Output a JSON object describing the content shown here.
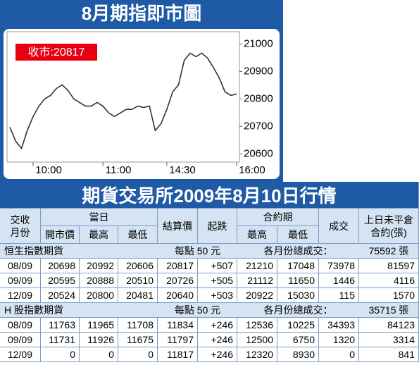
{
  "chart_data": {
    "type": "line",
    "title": "8月期指即市圖",
    "annotation": "收市:20817",
    "color": "#333333",
    "categories": [
      null,
      null,
      null,
      null,
      "10:00",
      null,
      null,
      null,
      null,
      null,
      null,
      null,
      null,
      null,
      null,
      null,
      "11:00",
      null,
      null,
      null,
      null,
      null,
      null,
      null,
      null,
      null,
      null,
      "14:30",
      null,
      null,
      null,
      null,
      null,
      null,
      null,
      null,
      null,
      null,
      null,
      "16:00"
    ],
    "values": [
      20697,
      20646,
      20620,
      20685,
      20736,
      20774,
      20800,
      20813,
      20838,
      20851,
      20831,
      20800,
      20787,
      20774,
      20774,
      20787,
      20774,
      20749,
      20736,
      20749,
      20762,
      20762,
      20774,
      20769,
      20774,
      20685,
      20710,
      20762,
      20826,
      20851,
      20941,
      20967,
      20954,
      20967,
      20949,
      20915,
      20877,
      20826,
      20813,
      20818
    ],
    "ylim": [
      20570,
      21045
    ],
    "yticks": [
      20600,
      20700,
      20800,
      20900,
      21000
    ],
    "grid": false
  },
  "table": {
    "title": "期貨交易所2009年8月10日行情",
    "header": {
      "month": [
        "交收",
        "月份"
      ],
      "day": "當日",
      "open": "開市價",
      "high": "最高",
      "low": "最低",
      "settle": "結算價",
      "change": "起跌",
      "contract": "合約期",
      "chigh": "最高",
      "clow": "最低",
      "volume": "成交",
      "oi": [
        "上日未平倉",
        "合約(張)"
      ]
    },
    "groups": [
      {
        "name": "恒生指數期貨",
        "unit": "每點 50 元",
        "total_label": "各月份總成交：",
        "total": "75592 張",
        "rows": [
          [
            "08/09",
            "20698",
            "20992",
            "20606",
            "20817",
            "+507",
            "21210",
            "17048",
            "73978",
            "81597"
          ],
          [
            "09/09",
            "20595",
            "20888",
            "20510",
            "20726",
            "+505",
            "21112",
            "11650",
            "1446",
            "4116"
          ],
          [
            "12/09",
            "20524",
            "20800",
            "20481",
            "20640",
            "+503",
            "20922",
            "15030",
            "115",
            "1570"
          ]
        ]
      },
      {
        "name": "H 股指數期貨",
        "unit": "每點 50 元",
        "total_label": "各月份總成交：",
        "total": "35715 張",
        "rows": [
          [
            "08/09",
            "11763",
            "11965",
            "11708",
            "11834",
            "+246",
            "12536",
            "10225",
            "34393",
            "84123"
          ],
          [
            "09/09",
            "11731",
            "11926",
            "11675",
            "11797",
            "+246",
            "12500",
            "6750",
            "1320",
            "3314"
          ],
          [
            "12/09",
            "0",
            "0",
            "0",
            "11817",
            "+246",
            "12320",
            "8930",
            "0",
            "841"
          ]
        ]
      }
    ]
  }
}
